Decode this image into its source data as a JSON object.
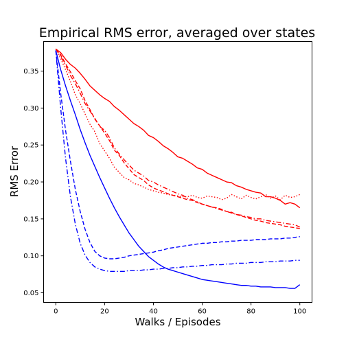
{
  "chart_data": {
    "type": "line",
    "title": "Empirical RMS error, averaged over states",
    "xlabel": "Walks / Episodes",
    "ylabel": "RMS Error",
    "xlim": [
      -5,
      105
    ],
    "ylim": [
      0.037,
      0.39
    ],
    "xticks": [
      0,
      20,
      40,
      60,
      80,
      100
    ],
    "yticks": [
      0.05,
      0.1,
      0.15,
      0.2,
      0.25,
      0.3,
      0.35
    ],
    "ytick_labels": [
      "0.05",
      "0.10",
      "0.15",
      "0.20",
      "0.25",
      "0.30",
      "0.35"
    ],
    "grid": false,
    "series": [
      {
        "color": "#ff0000",
        "style": "solid",
        "x": [
          0,
          2,
          4,
          6,
          8,
          10,
          12,
          14,
          16,
          18,
          20,
          22,
          24,
          26,
          28,
          30,
          32,
          34,
          36,
          38,
          40,
          42,
          44,
          46,
          48,
          50,
          52,
          54,
          56,
          58,
          60,
          62,
          64,
          66,
          68,
          70,
          72,
          74,
          76,
          78,
          80,
          82,
          84,
          86,
          88,
          90,
          92,
          94,
          96,
          98,
          100
        ],
        "y": [
          0.38,
          0.375,
          0.366,
          0.359,
          0.354,
          0.347,
          0.339,
          0.33,
          0.324,
          0.318,
          0.313,
          0.309,
          0.302,
          0.297,
          0.291,
          0.285,
          0.279,
          0.275,
          0.27,
          0.263,
          0.26,
          0.255,
          0.249,
          0.245,
          0.24,
          0.234,
          0.232,
          0.228,
          0.224,
          0.219,
          0.217,
          0.212,
          0.209,
          0.206,
          0.203,
          0.2,
          0.199,
          0.195,
          0.193,
          0.19,
          0.188,
          0.186,
          0.185,
          0.18,
          0.18,
          0.178,
          0.175,
          0.17,
          0.172,
          0.17,
          0.165
        ]
      },
      {
        "color": "#ff0000",
        "style": "dashdot",
        "x": [
          0,
          2,
          4,
          6,
          8,
          10,
          12,
          14,
          16,
          18,
          20,
          22,
          24,
          26,
          28,
          30,
          32,
          34,
          36,
          38,
          40,
          42,
          44,
          46,
          48,
          50,
          52,
          54,
          56,
          58,
          60,
          62,
          64,
          66,
          68,
          70,
          72,
          74,
          76,
          78,
          80,
          82,
          84,
          86,
          88,
          90,
          92,
          94,
          96,
          98,
          100
        ],
        "y": [
          0.38,
          0.37,
          0.358,
          0.344,
          0.333,
          0.32,
          0.306,
          0.296,
          0.286,
          0.275,
          0.27,
          0.26,
          0.246,
          0.238,
          0.23,
          0.223,
          0.216,
          0.212,
          0.208,
          0.202,
          0.2,
          0.196,
          0.193,
          0.19,
          0.187,
          0.184,
          0.182,
          0.178,
          0.176,
          0.173,
          0.17,
          0.168,
          0.166,
          0.164,
          0.162,
          0.16,
          0.158,
          0.156,
          0.155,
          0.153,
          0.152,
          0.15,
          0.15,
          0.148,
          0.147,
          0.146,
          0.145,
          0.144,
          0.143,
          0.142,
          0.139
        ]
      },
      {
        "color": "#ff0000",
        "style": "dashed",
        "x": [
          0,
          2,
          4,
          6,
          8,
          10,
          12,
          14,
          16,
          18,
          20,
          22,
          24,
          26,
          28,
          30,
          32,
          34,
          36,
          38,
          40,
          42,
          44,
          46,
          48,
          50,
          52,
          54,
          56,
          58,
          60,
          62,
          64,
          66,
          68,
          70,
          72,
          74,
          76,
          78,
          80,
          82,
          84,
          86,
          88,
          90,
          92,
          94,
          96,
          98,
          100
        ],
        "y": [
          0.38,
          0.372,
          0.36,
          0.349,
          0.337,
          0.326,
          0.31,
          0.298,
          0.285,
          0.276,
          0.266,
          0.256,
          0.243,
          0.236,
          0.226,
          0.218,
          0.21,
          0.206,
          0.202,
          0.196,
          0.192,
          0.189,
          0.187,
          0.184,
          0.182,
          0.18,
          0.178,
          0.176,
          0.175,
          0.172,
          0.17,
          0.168,
          0.166,
          0.165,
          0.163,
          0.16,
          0.159,
          0.156,
          0.154,
          0.152,
          0.15,
          0.148,
          0.147,
          0.145,
          0.144,
          0.143,
          0.142,
          0.14,
          0.139,
          0.138,
          0.137
        ]
      },
      {
        "color": "#ff0000",
        "style": "dotted",
        "x": [
          0,
          2,
          4,
          6,
          8,
          10,
          12,
          14,
          16,
          18,
          20,
          22,
          24,
          26,
          28,
          30,
          32,
          34,
          36,
          38,
          40,
          42,
          44,
          46,
          48,
          50,
          52,
          54,
          56,
          58,
          60,
          62,
          64,
          66,
          68,
          70,
          72,
          74,
          76,
          78,
          80,
          82,
          84,
          86,
          88,
          90,
          92,
          94,
          96,
          98,
          100
        ],
        "y": [
          0.38,
          0.367,
          0.352,
          0.336,
          0.318,
          0.306,
          0.292,
          0.278,
          0.268,
          0.252,
          0.242,
          0.232,
          0.22,
          0.213,
          0.206,
          0.203,
          0.198,
          0.196,
          0.193,
          0.19,
          0.188,
          0.186,
          0.185,
          0.183,
          0.182,
          0.181,
          0.18,
          0.18,
          0.182,
          0.179,
          0.178,
          0.181,
          0.18,
          0.179,
          0.176,
          0.178,
          0.183,
          0.18,
          0.177,
          0.182,
          0.179,
          0.177,
          0.18,
          0.183,
          0.178,
          0.181,
          0.176,
          0.182,
          0.179,
          0.18,
          0.183
        ]
      },
      {
        "color": "#0000ff",
        "style": "solid",
        "x": [
          0,
          2,
          4,
          6,
          8,
          10,
          12,
          14,
          16,
          18,
          20,
          22,
          24,
          26,
          28,
          30,
          32,
          34,
          36,
          38,
          40,
          42,
          44,
          46,
          48,
          50,
          52,
          54,
          56,
          58,
          60,
          62,
          64,
          66,
          68,
          70,
          72,
          74,
          76,
          78,
          80,
          82,
          84,
          86,
          88,
          90,
          92,
          94,
          96,
          98,
          100
        ],
        "y": [
          0.378,
          0.352,
          0.33,
          0.31,
          0.291,
          0.271,
          0.253,
          0.236,
          0.221,
          0.206,
          0.192,
          0.178,
          0.165,
          0.153,
          0.142,
          0.131,
          0.122,
          0.113,
          0.106,
          0.099,
          0.094,
          0.089,
          0.085,
          0.082,
          0.08,
          0.078,
          0.076,
          0.074,
          0.072,
          0.07,
          0.068,
          0.067,
          0.066,
          0.065,
          0.064,
          0.063,
          0.062,
          0.061,
          0.06,
          0.06,
          0.059,
          0.059,
          0.058,
          0.058,
          0.058,
          0.057,
          0.057,
          0.057,
          0.056,
          0.056,
          0.061
        ]
      },
      {
        "color": "#0000ff",
        "style": "dashed",
        "x": [
          0,
          2,
          4,
          6,
          8,
          10,
          12,
          14,
          16,
          18,
          20,
          22,
          24,
          26,
          28,
          30,
          32,
          34,
          36,
          38,
          40,
          42,
          44,
          46,
          48,
          50,
          52,
          54,
          56,
          58,
          60,
          62,
          64,
          66,
          68,
          70,
          72,
          74,
          76,
          78,
          80,
          82,
          84,
          86,
          88,
          90,
          92,
          94,
          96,
          98,
          100
        ],
        "y": [
          0.378,
          0.32,
          0.27,
          0.228,
          0.19,
          0.16,
          0.136,
          0.118,
          0.106,
          0.1,
          0.097,
          0.096,
          0.096,
          0.097,
          0.098,
          0.1,
          0.101,
          0.102,
          0.103,
          0.104,
          0.105,
          0.107,
          0.108,
          0.11,
          0.111,
          0.112,
          0.113,
          0.114,
          0.115,
          0.116,
          0.117,
          0.117,
          0.118,
          0.118,
          0.119,
          0.119,
          0.12,
          0.12,
          0.121,
          0.121,
          0.121,
          0.122,
          0.122,
          0.122,
          0.123,
          0.123,
          0.123,
          0.124,
          0.124,
          0.125,
          0.126
        ]
      },
      {
        "color": "#0000ff",
        "style": "dashdot",
        "x": [
          0,
          2,
          4,
          6,
          8,
          10,
          12,
          14,
          16,
          18,
          20,
          22,
          24,
          26,
          28,
          30,
          32,
          34,
          36,
          38,
          40,
          42,
          44,
          46,
          48,
          50,
          52,
          54,
          56,
          58,
          60,
          62,
          64,
          66,
          68,
          70,
          72,
          74,
          76,
          78,
          80,
          82,
          84,
          86,
          88,
          90,
          92,
          94,
          96,
          98,
          100
        ],
        "y": [
          0.378,
          0.3,
          0.232,
          0.18,
          0.143,
          0.117,
          0.101,
          0.091,
          0.085,
          0.082,
          0.08,
          0.079,
          0.079,
          0.079,
          0.079,
          0.08,
          0.08,
          0.08,
          0.081,
          0.081,
          0.082,
          0.082,
          0.083,
          0.083,
          0.084,
          0.084,
          0.085,
          0.085,
          0.086,
          0.086,
          0.087,
          0.087,
          0.088,
          0.088,
          0.088,
          0.089,
          0.089,
          0.09,
          0.09,
          0.09,
          0.091,
          0.091,
          0.091,
          0.092,
          0.092,
          0.092,
          0.093,
          0.093,
          0.093,
          0.094,
          0.094
        ]
      }
    ]
  }
}
